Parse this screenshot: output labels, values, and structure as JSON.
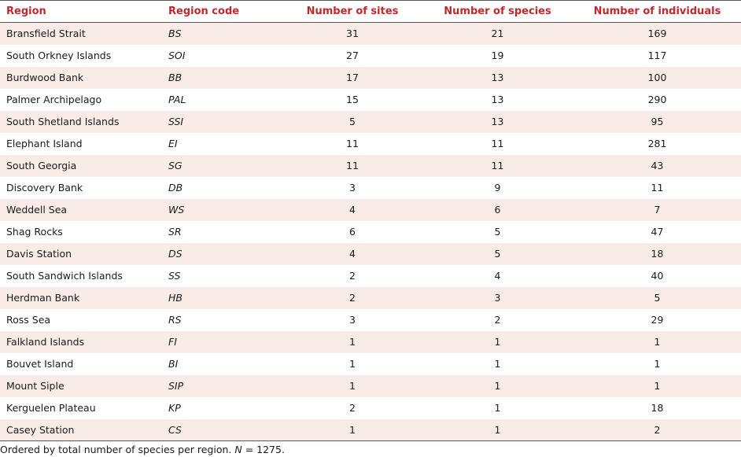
{
  "table": {
    "headers": {
      "region": "Region",
      "code": "Region code",
      "sites": "Number of sites",
      "species": "Number of species",
      "individuals": "Number of individuals"
    },
    "rows": [
      {
        "region": "Bransfield Strait",
        "code": "BS",
        "sites": "31",
        "species": "21",
        "individuals": "169"
      },
      {
        "region": "South Orkney Islands",
        "code": "SOI",
        "sites": "27",
        "species": "19",
        "individuals": "117"
      },
      {
        "region": "Burdwood Bank",
        "code": "BB",
        "sites": "17",
        "species": "13",
        "individuals": "100"
      },
      {
        "region": "Palmer Archipelago",
        "code": "PAL",
        "sites": "15",
        "species": "13",
        "individuals": "290"
      },
      {
        "region": "South Shetland Islands",
        "code": "SSI",
        "sites": "5",
        "species": "13",
        "individuals": "95"
      },
      {
        "region": "Elephant Island",
        "code": "EI",
        "sites": "11",
        "species": "11",
        "individuals": "281"
      },
      {
        "region": "South Georgia",
        "code": "SG",
        "sites": "11",
        "species": "11",
        "individuals": "43"
      },
      {
        "region": "Discovery Bank",
        "code": "DB",
        "sites": "3",
        "species": "9",
        "individuals": "11"
      },
      {
        "region": "Weddell Sea",
        "code": "WS",
        "sites": "4",
        "species": "6",
        "individuals": "7"
      },
      {
        "region": "Shag Rocks",
        "code": "SR",
        "sites": "6",
        "species": "5",
        "individuals": "47"
      },
      {
        "region": "Davis Station",
        "code": "DS",
        "sites": "4",
        "species": "5",
        "individuals": "18"
      },
      {
        "region": "South Sandwich Islands",
        "code": "SS",
        "sites": "2",
        "species": "4",
        "individuals": "40"
      },
      {
        "region": "Herdman Bank",
        "code": "HB",
        "sites": "2",
        "species": "3",
        "individuals": "5"
      },
      {
        "region": "Ross Sea",
        "code": "RS",
        "sites": "3",
        "species": "2",
        "individuals": "29"
      },
      {
        "region": "Falkland Islands",
        "code": "FI",
        "sites": "1",
        "species": "1",
        "individuals": "1"
      },
      {
        "region": "Bouvet Island",
        "code": "BI",
        "sites": "1",
        "species": "1",
        "individuals": "1"
      },
      {
        "region": "Mount Siple",
        "code": "SIP",
        "sites": "1",
        "species": "1",
        "individuals": "1"
      },
      {
        "region": "Kerguelen Plateau",
        "code": "KP",
        "sites": "2",
        "species": "1",
        "individuals": "18"
      },
      {
        "region": "Casey Station",
        "code": "CS",
        "sites": "1",
        "species": "1",
        "individuals": "2"
      }
    ]
  },
  "footnote": {
    "text_before": "Ordered by total number of species per region. ",
    "italic_n": "N",
    "text_after": " = 1275."
  },
  "colors": {
    "header_text": "#c0282d",
    "stripe": "#f9ece6"
  }
}
